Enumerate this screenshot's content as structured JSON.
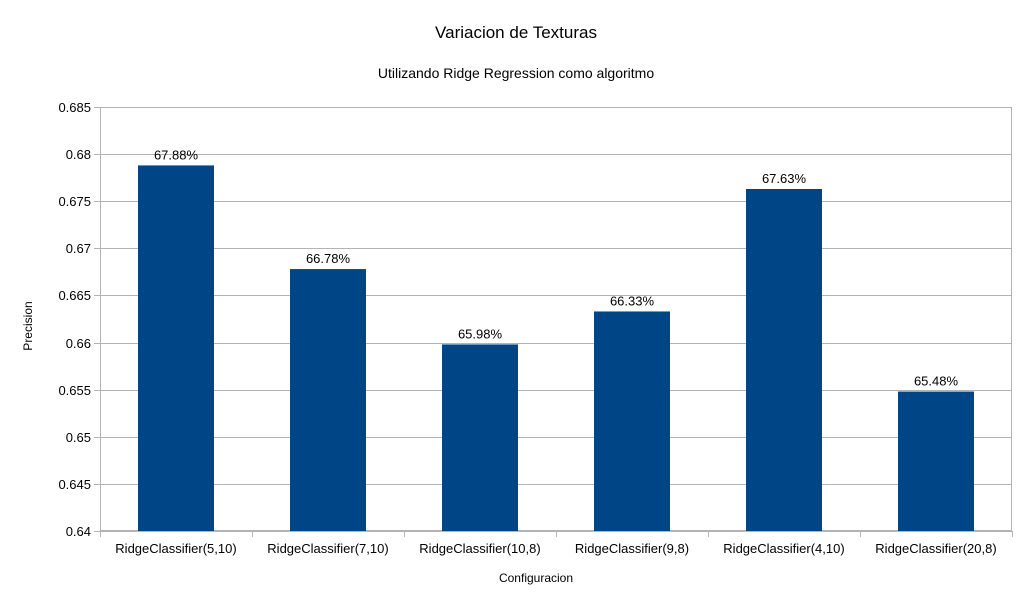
{
  "chart_data": {
    "type": "bar",
    "title": "Variacion de Texturas",
    "subtitle": "Utilizando Ridge Regression como algoritmo",
    "xlabel": "Configuracion",
    "ylabel": "Precision",
    "categories": [
      "RidgeClassifier(5,10)",
      "RidgeClassifier(7,10)",
      "RidgeClassifier(10,8)",
      "RidgeClassifier(9,8)",
      "RidgeClassifier(4,10)",
      "RidgeClassifier(20,8)"
    ],
    "values": [
      0.6788,
      0.6678,
      0.6598,
      0.6633,
      0.6763,
      0.6548
    ],
    "data_labels": [
      "67.88%",
      "66.78%",
      "65.98%",
      "66.33%",
      "67.63%",
      "65.48%"
    ],
    "ylim": [
      0.64,
      0.685
    ],
    "yticks": [
      {
        "value": 0.64,
        "label": "0.64"
      },
      {
        "value": 0.645,
        "label": "0.645"
      },
      {
        "value": 0.65,
        "label": "0.65"
      },
      {
        "value": 0.655,
        "label": "0.655"
      },
      {
        "value": 0.66,
        "label": "0.66"
      },
      {
        "value": 0.665,
        "label": "0.665"
      },
      {
        "value": 0.67,
        "label": "0.67"
      },
      {
        "value": 0.675,
        "label": "0.675"
      },
      {
        "value": 0.68,
        "label": "0.68"
      },
      {
        "value": 0.685,
        "label": "0.685"
      }
    ],
    "grid": true,
    "legend": "none",
    "bar_color": "#004586"
  }
}
